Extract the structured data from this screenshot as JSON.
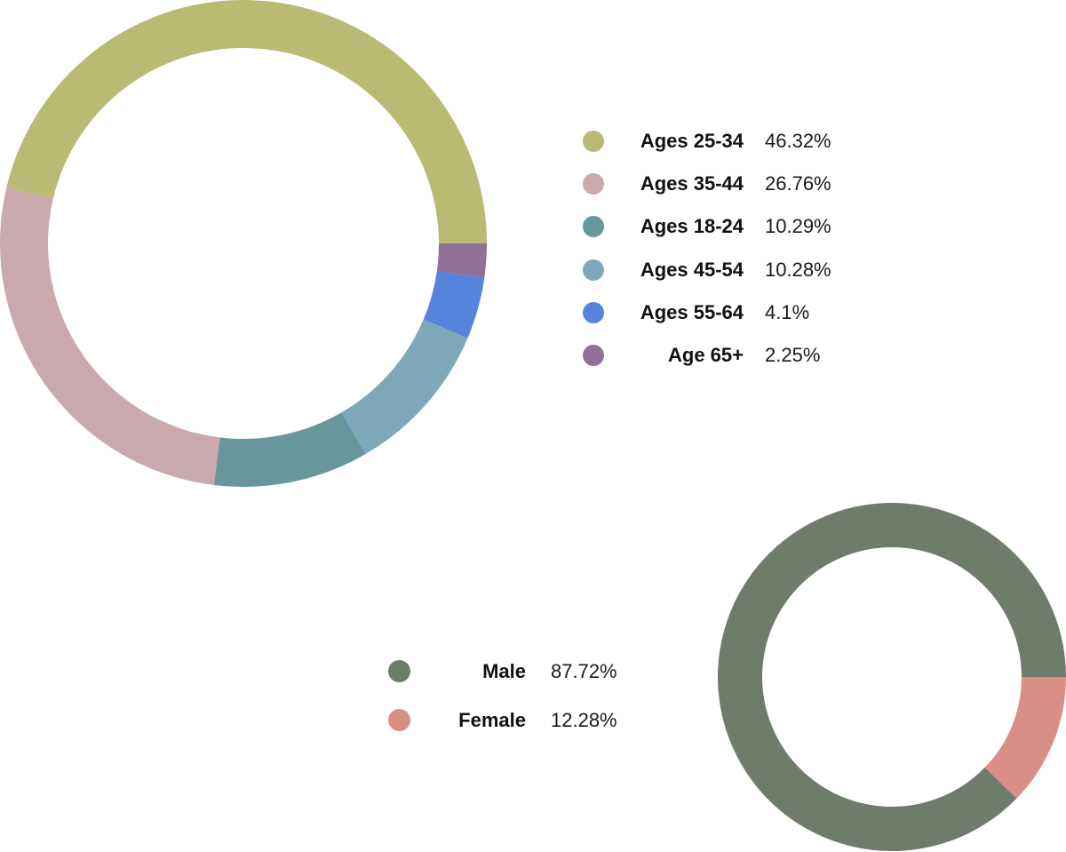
{
  "chart_data": [
    {
      "type": "pie",
      "variant": "donut",
      "legend_position": "right",
      "series": [
        {
          "name": "Ages 25-34",
          "label": "Ages 25-34",
          "value_label": "46.32%",
          "value": 46.32,
          "color": "#b9ba74"
        },
        {
          "name": "Ages 35-44",
          "label": "Ages 35-44",
          "value_label": "26.76%",
          "value": 26.76,
          "color": "#c9a9ad"
        },
        {
          "name": "Ages 18-24",
          "label": "Ages 18-24",
          "value_label": "10.29%",
          "value": 10.29,
          "color": "#67979a"
        },
        {
          "name": "Ages 45-54",
          "label": "Ages 45-54",
          "value_label": "10.28%",
          "value": 10.28,
          "color": "#7ea8b9"
        },
        {
          "name": "Ages 55-64",
          "label": "Ages 55-64",
          "value_label": "4.1%",
          "value": 4.1,
          "color": "#5683db"
        },
        {
          "name": "Age 65+",
          "label": "Age 65+",
          "value_label": "2.25%",
          "value": 2.25,
          "color": "#8f7096"
        }
      ]
    },
    {
      "type": "pie",
      "variant": "donut",
      "legend_position": "left",
      "series": [
        {
          "name": "Male",
          "label": "Male",
          "value_label": "87.72%",
          "value": 87.72,
          "color": "#6f7c6c"
        },
        {
          "name": "Female",
          "label": "Female",
          "value_label": "12.28%",
          "value": 12.28,
          "color": "#d98f86"
        }
      ]
    }
  ]
}
